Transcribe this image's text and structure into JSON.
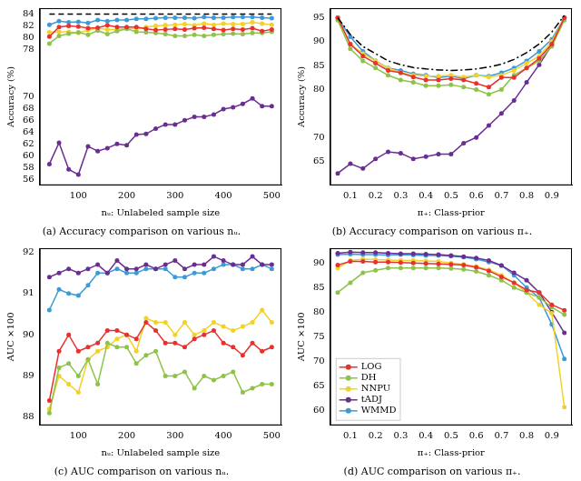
{
  "chart_data": [
    {
      "type": "line",
      "title": "(a) Accuracy comparison on various nᵤ.",
      "x_label": "nᵤ: Unlabeled sample size",
      "y_label": "Accuracy (%)",
      "x": [
        40,
        60,
        80,
        100,
        120,
        140,
        160,
        180,
        200,
        220,
        240,
        260,
        280,
        300,
        320,
        340,
        360,
        380,
        400,
        420,
        440,
        460,
        480,
        500
      ],
      "xlim": [
        20,
        520
      ],
      "xticks": [
        100,
        200,
        300,
        400,
        500
      ],
      "ylim": [
        55,
        85
      ],
      "yticks": [
        56,
        58,
        60,
        62,
        64,
        66,
        68,
        70,
        78,
        80,
        82,
        84
      ],
      "grid": false,
      "series": [
        {
          "color": "#000000",
          "line_style": "dashed",
          "marker": "none",
          "values": [
            84,
            84,
            84,
            84,
            84,
            84,
            84,
            84,
            84,
            84,
            84,
            84,
            84,
            84,
            84,
            84,
            84,
            84,
            84,
            84,
            84,
            84,
            84,
            84
          ]
        },
        {
          "name": "LOG",
          "color": "#e8312f",
          "marker": "circle",
          "line_style": "solid",
          "values": [
            80.2,
            81.8,
            82.0,
            81.9,
            81.6,
            81.7,
            82.1,
            81.8,
            81.8,
            81.8,
            81.5,
            81.3,
            81.4,
            81.5,
            81.4,
            81.6,
            81.7,
            81.5,
            81.3,
            81.5,
            81.4,
            81.6,
            81.1,
            81.4
          ]
        },
        {
          "name": "DH",
          "color": "#8fc24a",
          "marker": "circle",
          "line_style": "solid",
          "values": [
            79,
            80.3,
            80.7,
            80.9,
            80.5,
            81.2,
            80.6,
            81.1,
            81.5,
            81.0,
            80.9,
            80.8,
            80.6,
            80.3,
            80.3,
            80.5,
            80.3,
            80.5,
            80.6,
            80.7,
            80.6,
            80.8,
            80.8,
            81.0
          ]
        },
        {
          "name": "NNPU",
          "color": "#f2d12a",
          "marker": "circle",
          "line_style": "solid",
          "values": [
            80.9,
            81.0,
            81.0,
            80.8,
            81.3,
            81.6,
            81.4,
            81.4,
            81.6,
            81.5,
            81.8,
            82.0,
            82.1,
            82.2,
            82.3,
            82.1,
            82.4,
            82.2,
            82.4,
            82.3,
            82.3,
            82.6,
            82.4,
            82.2
          ]
        },
        {
          "name": "tADJ",
          "color": "#6a2d91",
          "marker": "circle",
          "line_style": "solid",
          "values": [
            58.6,
            62.2,
            57.7,
            56.8,
            61.6,
            60.8,
            61.3,
            62,
            61.8,
            63.6,
            63.7,
            64.6,
            65.3,
            65.3,
            66,
            66.6,
            66.6,
            67,
            67.9,
            68.2,
            68.8,
            69.7,
            68.4,
            68.4
          ]
        },
        {
          "name": "WMMD",
          "color": "#3d9ad9",
          "marker": "circle",
          "line_style": "solid",
          "values": [
            82.2,
            82.8,
            82.6,
            82.7,
            82.5,
            83,
            82.8,
            83,
            83,
            83.2,
            83.2,
            83.3,
            83.4,
            83.4,
            83.4,
            83.3,
            83.5,
            83.4,
            83.4,
            83.5,
            83.5,
            83.5,
            83.4,
            83.3
          ]
        }
      ]
    },
    {
      "type": "line",
      "title": "(b) Accuracy comparison on various π₊.",
      "x_label": "π₊: Class-prior",
      "y_label": "Accuracy (%)",
      "x": [
        0.05,
        0.1,
        0.15,
        0.2,
        0.25,
        0.3,
        0.35,
        0.4,
        0.45,
        0.5,
        0.55,
        0.6,
        0.65,
        0.7,
        0.75,
        0.8,
        0.85,
        0.9,
        0.95
      ],
      "xlim": [
        0.02,
        0.98
      ],
      "xticks": [
        0.1,
        0.2,
        0.3,
        0.4,
        0.5,
        0.6,
        0.7,
        0.8,
        0.9
      ],
      "ylim": [
        60,
        97
      ],
      "yticks": [
        65,
        70,
        80,
        85,
        90,
        95
      ],
      "grid": false,
      "series": [
        {
          "color": "#000000",
          "line_style": "dashdot",
          "marker": "none",
          "values": [
            95,
            91.5,
            89,
            87.5,
            86,
            85.2,
            84.6,
            84.3,
            84.1,
            84,
            84.1,
            84.3,
            84.7,
            85.3,
            86.3,
            87.7,
            89.5,
            92,
            95.5
          ]
        },
        {
          "name": "LOG",
          "color": "#e8312f",
          "marker": "circle",
          "line_style": "solid",
          "values": [
            95,
            89.5,
            87,
            85.5,
            84,
            83.5,
            82.6,
            82,
            82,
            82.3,
            82,
            81.3,
            80.5,
            82.5,
            82.5,
            84.5,
            86.5,
            89.5,
            95
          ]
        },
        {
          "name": "DH",
          "color": "#8fc24a",
          "marker": "circle",
          "line_style": "solid",
          "values": [
            94.5,
            88.5,
            86,
            84.5,
            83,
            82,
            81.5,
            80.8,
            80.8,
            81,
            80.5,
            80,
            79,
            80,
            83,
            84.5,
            86,
            89,
            94.5
          ]
        },
        {
          "name": "NNPU",
          "color": "#f2d12a",
          "marker": "circle",
          "line_style": "solid",
          "values": [
            95,
            89.5,
            87.5,
            86,
            84.5,
            83.5,
            83,
            82.8,
            82.8,
            83,
            82.6,
            83,
            82.6,
            83,
            84,
            85.5,
            87,
            90,
            95
          ]
        },
        {
          "name": "tADJ",
          "color": "#6a2d91",
          "marker": "circle",
          "line_style": "solid",
          "values": [
            62.5,
            64.5,
            63.5,
            65.5,
            67,
            66.7,
            65.5,
            66,
            66.5,
            66.5,
            68.8,
            70,
            72.5,
            75,
            77.7,
            81.5,
            85.2,
            89.3,
            95
          ]
        },
        {
          "name": "WMMD",
          "color": "#3d9ad9",
          "marker": "circle",
          "line_style": "solid",
          "values": [
            95,
            91,
            88,
            86,
            84.5,
            84,
            83.3,
            83,
            82.5,
            82.8,
            82.3,
            83,
            82.8,
            83.5,
            84.5,
            86,
            88,
            90.5,
            95
          ]
        }
      ]
    },
    {
      "type": "line",
      "title": "(c) AUC comparison on various nᵤ.",
      "x_label": "nᵤ: Unlabeled sample size",
      "y_label": "AUC ×100",
      "x": [
        40,
        60,
        80,
        100,
        120,
        140,
        160,
        180,
        200,
        220,
        240,
        260,
        280,
        300,
        320,
        340,
        360,
        380,
        400,
        420,
        440,
        460,
        480,
        500
      ],
      "xlim": [
        20,
        520
      ],
      "xticks": [
        100,
        200,
        300,
        400,
        500
      ],
      "ylim": [
        87.8,
        92.1
      ],
      "yticks": [
        88,
        89,
        90,
        91,
        92
      ],
      "grid": false,
      "series": [
        {
          "name": "LOG",
          "color": "#e8312f",
          "marker": "circle",
          "line_style": "solid",
          "values": [
            88.4,
            89.6,
            90.0,
            89.6,
            89.7,
            89.8,
            90.1,
            90.1,
            90.0,
            89.9,
            90.3,
            90.1,
            89.8,
            89.8,
            89.7,
            89.9,
            90.0,
            90.1,
            89.8,
            89.7,
            89.5,
            89.8,
            89.6,
            89.7
          ]
        },
        {
          "name": "DH",
          "color": "#8fc24a",
          "marker": "circle",
          "line_style": "solid",
          "values": [
            88.1,
            89.2,
            89.3,
            89.0,
            89.4,
            88.8,
            89.8,
            89.7,
            89.7,
            89.3,
            89.5,
            89.6,
            89.0,
            89.0,
            89.1,
            88.7,
            89.0,
            88.9,
            89.0,
            89.1,
            88.6,
            88.7,
            88.8,
            88.8
          ]
        },
        {
          "name": "NNPU",
          "color": "#f2d12a",
          "marker": "circle",
          "line_style": "solid",
          "values": [
            88.2,
            89.0,
            88.8,
            88.6,
            89.4,
            89.6,
            89.7,
            89.9,
            90.0,
            89.6,
            90.4,
            90.3,
            90.3,
            90.0,
            90.3,
            90.0,
            90.1,
            90.3,
            90.2,
            90.1,
            90.2,
            90.3,
            90.6,
            90.3
          ]
        },
        {
          "name": "tADJ",
          "color": "#6a2d91",
          "marker": "circle",
          "line_style": "solid",
          "values": [
            91.4,
            91.5,
            91.6,
            91.5,
            91.6,
            91.7,
            91.5,
            91.8,
            91.6,
            91.6,
            91.7,
            91.6,
            91.7,
            91.8,
            91.6,
            91.7,
            91.7,
            91.9,
            91.8,
            91.7,
            91.7,
            91.9,
            91.7,
            91.7
          ]
        },
        {
          "name": "WMMD",
          "color": "#3d9ad9",
          "marker": "circle",
          "line_style": "solid",
          "values": [
            90.6,
            91.1,
            91.0,
            90.95,
            91.2,
            91.5,
            91.5,
            91.6,
            91.5,
            91.5,
            91.6,
            91.6,
            91.6,
            91.4,
            91.4,
            91.5,
            91.5,
            91.6,
            91.7,
            91.7,
            91.6,
            91.6,
            91.7,
            91.6
          ]
        }
      ]
    },
    {
      "type": "line",
      "title": "(d) AUC comparison on various π₊.",
      "x_label": "π₊: Class-prior",
      "y_label": "AUC ×100",
      "x": [
        0.05,
        0.1,
        0.15,
        0.2,
        0.25,
        0.3,
        0.35,
        0.4,
        0.45,
        0.5,
        0.55,
        0.6,
        0.65,
        0.7,
        0.75,
        0.8,
        0.85,
        0.9,
        0.95
      ],
      "xlim": [
        0.02,
        0.98
      ],
      "xticks": [
        0.1,
        0.2,
        0.3,
        0.4,
        0.5,
        0.6,
        0.7,
        0.8,
        0.9
      ],
      "ylim": [
        57,
        93
      ],
      "yticks": [
        60,
        65,
        70,
        75,
        80,
        85,
        90
      ],
      "grid": false,
      "legend": "lower left",
      "series": [
        {
          "name": "LOG",
          "color": "#e8312f",
          "marker": "circle",
          "line_style": "solid",
          "values": [
            89.6,
            90.3,
            90.3,
            90.2,
            90.2,
            90.1,
            90,
            89.9,
            89.8,
            89.7,
            89.6,
            89.1,
            88.4,
            87.2,
            86,
            84.5,
            84,
            81.5,
            80.4
          ]
        },
        {
          "name": "DH",
          "color": "#8fc24a",
          "marker": "circle",
          "line_style": "solid",
          "values": [
            84,
            86,
            88,
            88.5,
            89,
            89,
            89,
            89,
            89,
            88.9,
            88.7,
            88.3,
            87.5,
            86.5,
            85,
            84,
            83,
            81,
            79.5
          ]
        },
        {
          "name": "NNPU",
          "color": "#f2d12a",
          "marker": "circle",
          "line_style": "solid",
          "values": [
            89,
            90.5,
            90.8,
            90.7,
            90.6,
            90.5,
            90.5,
            90.4,
            90.3,
            90,
            89.7,
            89.3,
            88.6,
            87.5,
            86,
            84,
            81.5,
            79.8,
            60.7
          ]
        },
        {
          "name": "tADJ",
          "color": "#6a2d91",
          "marker": "circle",
          "line_style": "solid",
          "values": [
            92,
            92.2,
            92.1,
            92.1,
            92,
            91.9,
            91.9,
            91.8,
            91.7,
            91.5,
            91.3,
            91,
            90.5,
            89.5,
            88,
            86.5,
            84,
            80,
            75.8
          ]
        },
        {
          "name": "WMMD",
          "color": "#3d9ad9",
          "marker": "circle",
          "line_style": "solid",
          "values": [
            91.7,
            91.8,
            91.7,
            91.7,
            91.6,
            91.7,
            91.6,
            91.5,
            91.5,
            91.4,
            91.2,
            90.8,
            90.2,
            89.5,
            87.5,
            85,
            83,
            77.5,
            70.5
          ]
        }
      ]
    }
  ]
}
